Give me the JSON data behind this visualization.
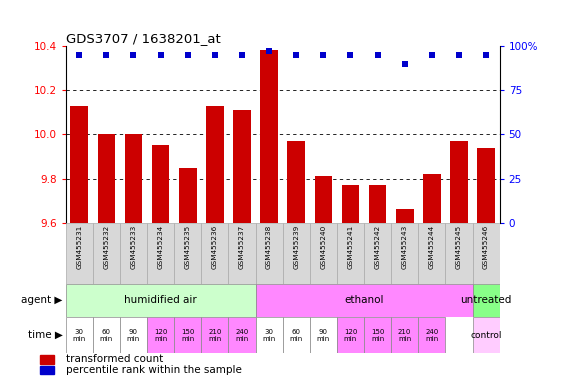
{
  "title": "GDS3707 / 1638201_at",
  "categories": [
    "GSM455231",
    "GSM455232",
    "GSM455233",
    "GSM455234",
    "GSM455235",
    "GSM455236",
    "GSM455237",
    "GSM455238",
    "GSM455239",
    "GSM455240",
    "GSM455241",
    "GSM455242",
    "GSM455243",
    "GSM455244",
    "GSM455245",
    "GSM455246"
  ],
  "bar_values": [
    10.13,
    10.0,
    10.0,
    9.95,
    9.85,
    10.13,
    10.11,
    10.38,
    9.97,
    9.81,
    9.77,
    9.77,
    9.66,
    9.82,
    9.97,
    9.94
  ],
  "percentile_values": [
    95,
    95,
    95,
    95,
    95,
    95,
    95,
    97,
    95,
    95,
    95,
    95,
    90,
    95,
    95,
    95
  ],
  "bar_color": "#cc0000",
  "percentile_color": "#0000cc",
  "ylim": [
    9.6,
    10.4
  ],
  "yticks": [
    9.6,
    9.8,
    10.0,
    10.2,
    10.4
  ],
  "y2lim": [
    0,
    100
  ],
  "y2ticks": [
    0,
    25,
    50,
    75,
    100
  ],
  "y2ticklabels": [
    "0",
    "25",
    "50",
    "75",
    "100%"
  ],
  "agent_groups": [
    {
      "label": "humidified air",
      "start": 0,
      "end": 7,
      "color": "#ccffcc"
    },
    {
      "label": "ethanol",
      "start": 7,
      "end": 15,
      "color": "#ff88ff"
    },
    {
      "label": "untreated",
      "start": 15,
      "end": 16,
      "color": "#88ff88"
    }
  ],
  "time_labels": [
    "30\nmin",
    "60\nmin",
    "90\nmin",
    "120\nmin",
    "150\nmin",
    "210\nmin",
    "240\nmin",
    "30\nmin",
    "60\nmin",
    "90\nmin",
    "120\nmin",
    "150\nmin",
    "210\nmin",
    "240\nmin"
  ],
  "time_colors": [
    "#ffffff",
    "#ffffff",
    "#ffffff",
    "#ff88ff",
    "#ff88ff",
    "#ff88ff",
    "#ff88ff",
    "#ffffff",
    "#ffffff",
    "#ffffff",
    "#ff88ff",
    "#ff88ff",
    "#ff88ff",
    "#ff88ff"
  ],
  "legend_items": [
    {
      "color": "#cc0000",
      "label": "transformed count"
    },
    {
      "color": "#0000cc",
      "label": "percentile rank within the sample"
    }
  ],
  "control_label": "control",
  "agent_label": "agent",
  "time_label": "time"
}
